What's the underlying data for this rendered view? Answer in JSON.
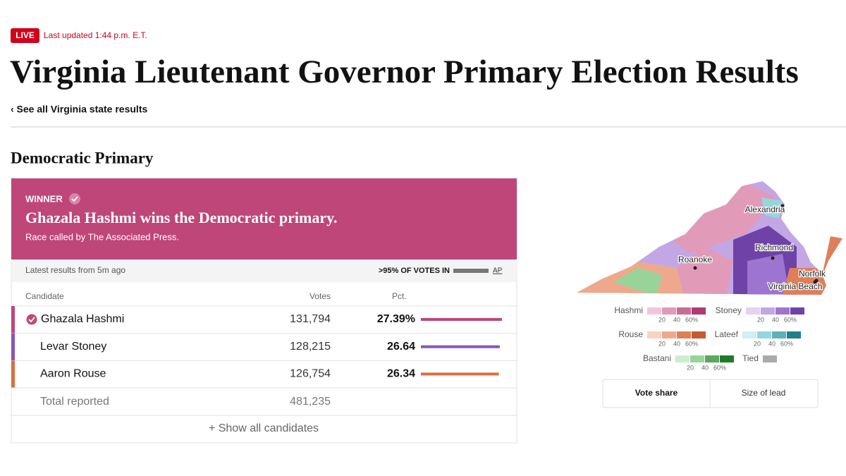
{
  "header": {
    "live": "LIVE",
    "updated": "Last updated 1:44 p.m. E.T.",
    "title": "Virginia Lieutenant Governor Primary Election Results",
    "back_link": "‹ See all Virginia state results"
  },
  "section": {
    "title": "Democratic Primary"
  },
  "card": {
    "winner_label": "WINNER",
    "headline": "Ghazala Hashmi wins the Democratic primary.",
    "called_by": "Race called by The Associated Press.",
    "latest": "Latest results from 5m ago",
    "votes_in": ">95% OF VOTES IN",
    "source": "AP",
    "columns": [
      "Candidate",
      "Votes",
      "Pct."
    ],
    "rows": [
      {
        "name": "Ghazala Hashmi",
        "votes": "131,794",
        "pct": {
          "value": 27.39,
          "label": "27.39%"
        },
        "color": "#c0477a",
        "winner": true
      },
      {
        "name": "Levar Stoney",
        "votes": "128,215",
        "pct": {
          "value": 26.64,
          "label": "26.64"
        },
        "color": "#8a55b5",
        "winner": false
      },
      {
        "name": "Aaron Rouse",
        "votes": "126,754",
        "pct": {
          "value": 26.34,
          "label": "26.34"
        },
        "color": "#dd6e42",
        "winner": false
      }
    ],
    "total": {
      "label": "Total reported",
      "votes": "481,235"
    },
    "show_all": "+ Show all candidates"
  },
  "map": {
    "cities": [
      "Alexandria",
      "Richmond",
      "Roanoke",
      "Norfolk",
      "Virginia Beach"
    ],
    "legend": [
      {
        "name": "Hashmi",
        "colors": [
          "#f2c6da",
          "#e29ab9",
          "#cc6a96",
          "#b03a72"
        ],
        "ticks": [
          "20",
          "40",
          "60%"
        ]
      },
      {
        "name": "Stoney",
        "colors": [
          "#e3d2f3",
          "#c3a6e4",
          "#9d74cf",
          "#6f42a8"
        ],
        "ticks": [
          "20",
          "40",
          "60%"
        ]
      },
      {
        "name": "Rouse",
        "colors": [
          "#f8d2c2",
          "#eea98d",
          "#de7f5a",
          "#c65a34"
        ],
        "ticks": [
          "20",
          "40",
          "60%"
        ]
      },
      {
        "name": "Lateef",
        "colors": [
          "#cdf0f2",
          "#95d6dc",
          "#5eb1ba",
          "#237f8a"
        ],
        "ticks": [
          "20",
          "40",
          "60%"
        ]
      },
      {
        "name": "Bastani",
        "colors": [
          "#cdeecd",
          "#98d49a",
          "#5aa760",
          "#217a2c"
        ],
        "ticks": [
          "20",
          "40",
          "60%"
        ]
      }
    ],
    "tied": {
      "name": "Tied",
      "color": "#aaaaaa"
    },
    "toggle": [
      "Vote share",
      "Size of lead"
    ]
  }
}
